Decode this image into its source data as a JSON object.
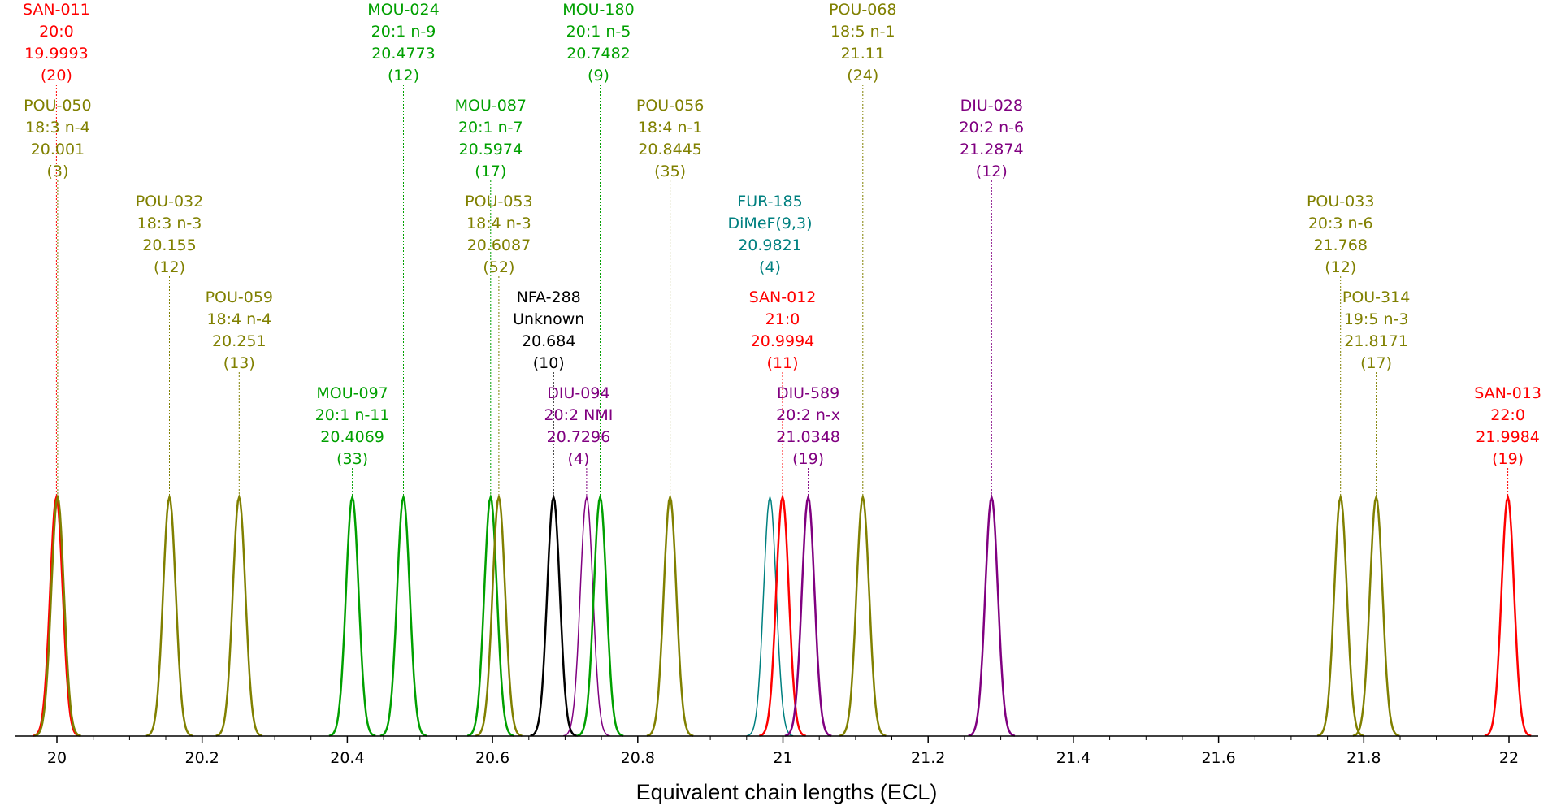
{
  "chart_data": {
    "type": "line",
    "xlabel": "Equivalent chain lengths (ECL)",
    "xlim": [
      19.96,
      22.05
    ],
    "x_ticks": [
      "20",
      "20.2",
      "20.4",
      "20.6",
      "20.8",
      "21",
      "21.2",
      "21.4",
      "21.6",
      "21.8",
      "22"
    ],
    "grid": false,
    "colors": {
      "red": "#ff0000",
      "olive": "#808000",
      "green": "#00a000",
      "black": "#000000",
      "purple": "#800080",
      "teal": "#008080"
    },
    "peaks": [
      {
        "id": "SAN-011",
        "name": "20:0",
        "ecl": "19.9993",
        "count": "(20)",
        "x": 19.9993,
        "color": "#ff0000"
      },
      {
        "id": "POU-050",
        "name": "18:3 n-4",
        "ecl": "20.001",
        "count": "(3)",
        "x": 20.001,
        "color": "#808000"
      },
      {
        "id": "POU-032",
        "name": "18:3 n-3",
        "ecl": "20.155",
        "count": "(12)",
        "x": 20.155,
        "color": "#808000"
      },
      {
        "id": "POU-059",
        "name": "18:4 n-4",
        "ecl": "20.251",
        "count": "(13)",
        "x": 20.251,
        "color": "#808000"
      },
      {
        "id": "MOU-097",
        "name": "20:1 n-11",
        "ecl": "20.4069",
        "count": "(33)",
        "x": 20.4069,
        "color": "#00a000"
      },
      {
        "id": "MOU-024",
        "name": "20:1 n-9",
        "ecl": "20.4773",
        "count": "(12)",
        "x": 20.4773,
        "color": "#00a000"
      },
      {
        "id": "MOU-087",
        "name": "20:1 n-7",
        "ecl": "20.5974",
        "count": "(17)",
        "x": 20.5974,
        "color": "#00a000"
      },
      {
        "id": "POU-053",
        "name": "18:4 n-3",
        "ecl": "20.6087",
        "count": "(52)",
        "x": 20.6087,
        "color": "#808000"
      },
      {
        "id": "NFA-288",
        "name": "Unknown",
        "ecl": "20.684",
        "count": "(10)",
        "x": 20.684,
        "color": "#000000"
      },
      {
        "id": "DIU-094",
        "name": "20:2 NMI",
        "ecl": "20.7296",
        "count": "(4)",
        "x": 20.7296,
        "color": "#800080"
      },
      {
        "id": "MOU-180",
        "name": "20:1 n-5",
        "ecl": "20.7482",
        "count": "(9)",
        "x": 20.7482,
        "color": "#00a000"
      },
      {
        "id": "POU-056",
        "name": "18:4 n-1",
        "ecl": "20.8445",
        "count": "(35)",
        "x": 20.8445,
        "color": "#808000"
      },
      {
        "id": "FUR-185",
        "name": "DiMeF(9,3)",
        "ecl": "20.9821",
        "count": "(4)",
        "x": 20.9821,
        "color": "#008080"
      },
      {
        "id": "SAN-012",
        "name": "21:0",
        "ecl": "20.9994",
        "count": "(11)",
        "x": 20.9994,
        "color": "#ff0000"
      },
      {
        "id": "DIU-589",
        "name": "20:2 n-x",
        "ecl": "21.0348",
        "count": "(19)",
        "x": 21.0348,
        "color": "#800080"
      },
      {
        "id": "POU-068",
        "name": "18:5 n-1",
        "ecl": "21.11",
        "count": "(24)",
        "x": 21.11,
        "color": "#808000"
      },
      {
        "id": "DIU-028",
        "name": "20:2 n-6",
        "ecl": "21.2874",
        "count": "(12)",
        "x": 21.2874,
        "color": "#800080"
      },
      {
        "id": "POU-033",
        "name": "20:3 n-6",
        "ecl": "21.768",
        "count": "(12)",
        "x": 21.768,
        "color": "#808000"
      },
      {
        "id": "POU-314",
        "name": "19:5 n-3",
        "ecl": "21.8171",
        "count": "(17)",
        "x": 21.8171,
        "color": "#808000"
      },
      {
        "id": "SAN-013",
        "name": "22:0",
        "ecl": "21.9984",
        "count": "(19)",
        "x": 21.9984,
        "color": "#ff0000"
      }
    ]
  }
}
